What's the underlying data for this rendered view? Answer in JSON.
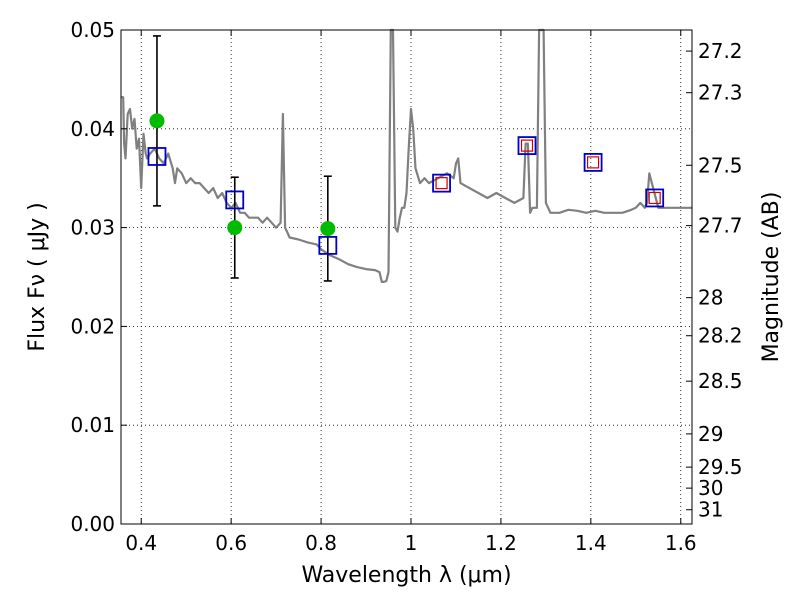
{
  "chart_data": {
    "type": "scatter",
    "title": "",
    "xlabel": "Wavelength  λ (μm)",
    "ylabel": "Flux  Fν  ( μJy )",
    "y2label": "Magnitude (AB)",
    "xlim": [
      0.355,
      1.625
    ],
    "ylim": [
      0.0,
      0.05
    ],
    "grid": true,
    "x_ticks": [
      0.4,
      0.6,
      0.8,
      1.0,
      1.2,
      1.4,
      1.6
    ],
    "x_tick_labels": [
      "0.4",
      "0.6",
      "0.8",
      "1",
      "1.2",
      "1.4",
      "1.6"
    ],
    "y_ticks": [
      0.0,
      0.01,
      0.02,
      0.03,
      0.04,
      0.05
    ],
    "y_tick_labels": [
      "0.00",
      "0.01",
      "0.02",
      "0.03",
      "0.04",
      "0.05"
    ],
    "mag_ticks": [
      27.2,
      27.3,
      27.5,
      27.7,
      28.0,
      28.2,
      28.5,
      29.0,
      29.5,
      30.0,
      31.0
    ],
    "mag_tick_labels": [
      "27.2",
      "27.3",
      "27.5",
      "27.7",
      "28",
      "28.2",
      "28.5",
      "29",
      "29.5",
      "30",
      "31"
    ],
    "colors": {
      "spectrum": "#808080",
      "observed": "#00bb00",
      "model_box": "#0000cc",
      "model_inner": "#cc0000",
      "errorbar": "#000000"
    },
    "series": [
      {
        "kind": "line",
        "x": [
          0.355,
          0.36,
          0.362,
          0.365,
          0.37,
          0.375,
          0.38,
          0.385,
          0.39,
          0.395,
          0.4,
          0.405,
          0.41,
          0.413,
          0.42,
          0.43,
          0.44,
          0.45,
          0.46,
          0.47,
          0.475,
          0.48,
          0.49,
          0.5,
          0.51,
          0.52,
          0.53,
          0.54,
          0.55,
          0.56,
          0.57,
          0.58,
          0.59,
          0.6,
          0.61,
          0.62,
          0.63,
          0.64,
          0.65,
          0.66,
          0.67,
          0.68,
          0.69,
          0.7,
          0.71,
          0.715,
          0.72,
          0.725,
          0.73,
          0.75,
          0.77,
          0.79,
          0.8,
          0.82,
          0.84,
          0.86,
          0.88,
          0.9,
          0.92,
          0.93,
          0.935,
          0.94,
          0.945,
          0.95,
          0.955,
          0.957,
          0.96,
          0.965,
          0.97,
          0.975,
          0.98,
          0.985,
          0.99,
          0.995,
          1.0,
          1.005,
          1.01,
          1.02,
          1.03,
          1.04,
          1.06,
          1.08,
          1.095,
          1.1,
          1.105,
          1.11,
          1.13,
          1.15,
          1.17,
          1.19,
          1.21,
          1.23,
          1.25,
          1.255,
          1.26,
          1.265,
          1.27,
          1.28,
          1.285,
          1.29,
          1.295,
          1.3,
          1.31,
          1.33,
          1.35,
          1.37,
          1.39,
          1.41,
          1.43,
          1.45,
          1.47,
          1.49,
          1.5,
          1.51,
          1.52,
          1.525,
          1.53,
          1.55,
          1.57,
          1.59,
          1.61,
          1.625
        ],
        "y": [
          0.0432,
          0.0432,
          0.0385,
          0.037,
          0.0415,
          0.042,
          0.04,
          0.041,
          0.038,
          0.039,
          0.034,
          0.0395,
          0.0375,
          0.037,
          0.0375,
          0.038,
          0.037,
          0.0365,
          0.0375,
          0.036,
          0.0345,
          0.036,
          0.0355,
          0.0345,
          0.035,
          0.0345,
          0.0345,
          0.034,
          0.0335,
          0.034,
          0.033,
          0.0335,
          0.0325,
          0.032,
          0.0325,
          0.0315,
          0.0315,
          0.031,
          0.031,
          0.031,
          0.0305,
          0.031,
          0.0305,
          0.03,
          0.0305,
          0.0415,
          0.03,
          0.0295,
          0.029,
          0.0288,
          0.0285,
          0.0283,
          0.0278,
          0.0272,
          0.0268,
          0.0263,
          0.026,
          0.0258,
          0.0257,
          0.0255,
          0.0245,
          0.0245,
          0.0246,
          0.0255,
          0.05,
          0.05,
          0.05,
          0.03,
          0.0296,
          0.031,
          0.032,
          0.032,
          0.0335,
          0.038,
          0.042,
          0.04,
          0.036,
          0.0345,
          0.035,
          0.0345,
          0.035,
          0.0355,
          0.035,
          0.0365,
          0.037,
          0.0345,
          0.034,
          0.0335,
          0.033,
          0.0335,
          0.033,
          0.0325,
          0.033,
          0.0385,
          0.0385,
          0.0315,
          0.032,
          0.032,
          0.05,
          0.05,
          0.05,
          0.0325,
          0.0315,
          0.0315,
          0.0318,
          0.0317,
          0.0315,
          0.0317,
          0.0315,
          0.0315,
          0.0315,
          0.0318,
          0.032,
          0.0325,
          0.032,
          0.0325,
          0.0355,
          0.032,
          0.032,
          0.032,
          0.032,
          0.032
        ]
      },
      {
        "kind": "observed",
        "x": [
          0.435,
          0.608,
          0.815
        ],
        "y": [
          0.0408,
          0.03,
          0.0299
        ],
        "err": [
          0.0086,
          0.0051,
          0.0053
        ]
      },
      {
        "kind": "model",
        "x": [
          0.435,
          0.608,
          0.815,
          1.068,
          1.258,
          1.405,
          1.542
        ],
        "y": [
          0.0372,
          0.0328,
          0.0282,
          0.0345,
          0.0383,
          0.0366,
          0.033
        ],
        "inner": [
          false,
          false,
          false,
          true,
          true,
          true,
          true
        ]
      }
    ]
  }
}
